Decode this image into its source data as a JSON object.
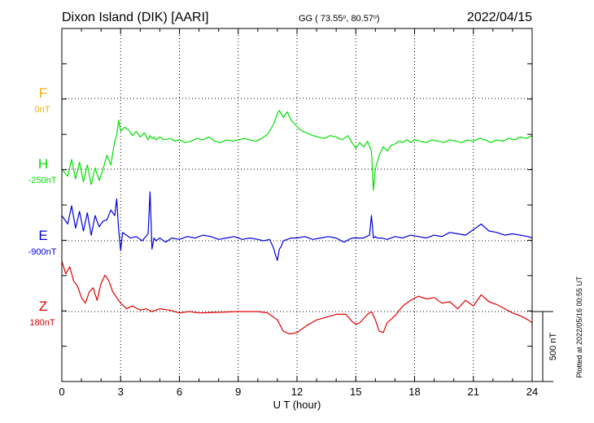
{
  "header": {
    "station": "Dixon Island (DIK)  [AARI]",
    "coords_prefix": "GG ( 73.55",
    "coords_mid": ",  80.57",
    "coords_suffix": ")",
    "date": "2022/04/15"
  },
  "plotted_note": "Plotted at 2022/05/16 00:55 UT",
  "scale_label": "500 nT",
  "colors": {
    "F": "#f0b000",
    "H": "#00e000",
    "E": "#0000e0",
    "Z": "#e00000",
    "grid": "#000000"
  },
  "chart_data": {
    "type": "line",
    "xlabel": "U T (hour)",
    "xlim": [
      0,
      24
    ],
    "x_ticks": [
      "0",
      "3",
      "6",
      "9",
      "12",
      "15",
      "18",
      "21",
      "24"
    ],
    "scale_bar_nT": 500,
    "series": [
      {
        "name": "F",
        "baseline_label": "0nT",
        "baseline": 0,
        "color": "#f0b000",
        "x": [],
        "y": []
      },
      {
        "name": "H",
        "baseline_label": "-250nT",
        "baseline": -250,
        "color": "#00e000",
        "x": [
          0,
          0.3,
          0.5,
          0.7,
          0.9,
          1.1,
          1.3,
          1.5,
          1.7,
          1.9,
          2.1,
          2.3,
          2.5,
          2.7,
          2.8,
          2.9,
          3.0,
          3.2,
          3.4,
          3.6,
          3.8,
          4.0,
          4.2,
          4.4,
          4.5,
          4.6,
          4.7,
          4.8,
          5.0,
          5.2,
          5.5,
          5.8,
          6.0,
          6.3,
          6.6,
          6.9,
          7.2,
          7.5,
          7.8,
          8.1,
          8.4,
          8.7,
          9.0,
          9.3,
          9.6,
          9.9,
          10.2,
          10.5,
          10.8,
          11.0,
          11.1,
          11.3,
          11.5,
          11.7,
          11.9,
          12.1,
          12.3,
          12.5,
          12.8,
          13.1,
          13.4,
          13.7,
          14.0,
          14.3,
          14.6,
          14.8,
          15.0,
          15.2,
          15.4,
          15.6,
          15.8,
          15.9,
          16.0,
          16.2,
          16.4,
          16.6,
          16.8,
          17.0,
          17.2,
          17.4,
          17.6,
          17.8,
          18.0,
          18.3,
          18.6,
          18.9,
          19.2,
          19.5,
          19.8,
          20.1,
          20.4,
          20.7,
          21.0,
          21.3,
          21.6,
          21.9,
          22.2,
          22.5,
          22.8,
          23.1,
          23.4,
          23.7,
          24.0
        ],
        "y": [
          -250,
          -300,
          -180,
          -320,
          -200,
          -340,
          -220,
          -360,
          -240,
          -330,
          -250,
          -150,
          -220,
          -50,
          -10,
          100,
          20,
          50,
          30,
          -10,
          20,
          -20,
          10,
          -40,
          -10,
          -30,
          -20,
          -40,
          -20,
          -40,
          -30,
          -50,
          -40,
          -60,
          -50,
          -30,
          -40,
          -20,
          -50,
          -60,
          -40,
          -50,
          -40,
          -30,
          -40,
          -50,
          -30,
          0,
          70,
          150,
          170,
          120,
          160,
          100,
          70,
          40,
          20,
          10,
          -10,
          -20,
          -30,
          -10,
          -20,
          -40,
          -10,
          -60,
          -100,
          -60,
          -90,
          -50,
          -120,
          -400,
          -250,
          -150,
          -90,
          -120,
          -80,
          -70,
          -50,
          -60,
          -40,
          -60,
          -40,
          -50,
          -60,
          -40,
          -50,
          -60,
          -40,
          -50,
          -60,
          -40,
          -50,
          -30,
          -40,
          -60,
          -40,
          -50,
          -30,
          -40,
          -20,
          -30,
          -10
        ]
      },
      {
        "name": "E",
        "baseline_label": "-900nT",
        "baseline": -900,
        "color": "#0000e0",
        "x": [
          0,
          0.3,
          0.5,
          0.7,
          0.9,
          1.1,
          1.3,
          1.5,
          1.7,
          1.9,
          2.1,
          2.3,
          2.5,
          2.7,
          2.8,
          2.9,
          3.0,
          3.1,
          3.3,
          3.5,
          3.8,
          4.1,
          4.4,
          4.5,
          4.6,
          4.7,
          4.8,
          5.0,
          5.3,
          5.6,
          6.0,
          6.4,
          6.8,
          7.2,
          7.6,
          8.0,
          8.4,
          8.8,
          9.2,
          9.6,
          10.0,
          10.3,
          10.6,
          10.8,
          10.9,
          11.0,
          11.1,
          11.2,
          11.3,
          11.5,
          11.7,
          12.0,
          12.4,
          12.8,
          13.2,
          13.6,
          14.0,
          14.4,
          14.8,
          15.1,
          15.4,
          15.7,
          15.8,
          15.9,
          16.0,
          16.1,
          16.3,
          16.6,
          17.0,
          17.4,
          17.8,
          18.2,
          18.6,
          19.0,
          19.4,
          19.8,
          20.2,
          20.6,
          21.0,
          21.4,
          21.8,
          22.2,
          22.6,
          23.0,
          23.4,
          23.8,
          24.0
        ],
        "y": [
          -720,
          -780,
          -650,
          -810,
          -690,
          -830,
          -700,
          -860,
          -720,
          -800,
          -760,
          -750,
          -680,
          -720,
          -600,
          -820,
          -970,
          -840,
          -860,
          -880,
          -870,
          -900,
          -850,
          -550,
          -960,
          -880,
          -900,
          -880,
          -910,
          -880,
          -890,
          -870,
          -880,
          -860,
          -870,
          -890,
          -880,
          -870,
          -890,
          -880,
          -890,
          -900,
          -890,
          -950,
          -1000,
          -1040,
          -960,
          -940,
          -900,
          -890,
          -880,
          -880,
          -870,
          -890,
          -880,
          -870,
          -880,
          -910,
          -880,
          -880,
          -880,
          -860,
          -720,
          -880,
          -870,
          -880,
          -880,
          -890,
          -870,
          -880,
          -860,
          -870,
          -880,
          -860,
          -870,
          -840,
          -850,
          -860,
          -820,
          -780,
          -830,
          -840,
          -860,
          -850,
          -860,
          -870,
          -880
        ]
      },
      {
        "name": "Z",
        "baseline_label": "180nT",
        "baseline": 180,
        "color": "#e00000",
        "x": [
          0,
          0.2,
          0.4,
          0.6,
          0.8,
          1.0,
          1.2,
          1.4,
          1.6,
          1.8,
          2.0,
          2.2,
          2.4,
          2.6,
          2.8,
          3.0,
          3.3,
          3.6,
          4.0,
          4.3,
          4.6,
          5.0,
          5.5,
          6.0,
          6.5,
          7.0,
          8.0,
          9.0,
          10.0,
          10.5,
          11.0,
          11.3,
          11.6,
          12.0,
          12.5,
          13.0,
          13.5,
          14.0,
          14.5,
          14.8,
          15.0,
          15.2,
          15.4,
          15.6,
          15.8,
          16.0,
          16.2,
          16.4,
          16.6,
          17.0,
          17.4,
          17.8,
          18.2,
          18.6,
          19.0,
          19.4,
          19.8,
          20.2,
          20.6,
          21.0,
          21.4,
          21.8,
          22.2,
          22.6,
          23.0,
          23.4,
          23.8,
          24.0
        ],
        "y": [
          540,
          450,
          500,
          400,
          360,
          280,
          240,
          320,
          350,
          260,
          380,
          440,
          400,
          320,
          280,
          240,
          200,
          220,
          190,
          200,
          180,
          200,
          190,
          170,
          180,
          170,
          175,
          180,
          180,
          170,
          120,
          40,
          20,
          30,
          80,
          120,
          140,
          160,
          160,
          110,
          90,
          100,
          130,
          160,
          180,
          120,
          40,
          30,
          100,
          150,
          220,
          260,
          290,
          270,
          280,
          240,
          250,
          200,
          260,
          220,
          300,
          250,
          230,
          200,
          170,
          150,
          120,
          100
        ]
      }
    ]
  }
}
